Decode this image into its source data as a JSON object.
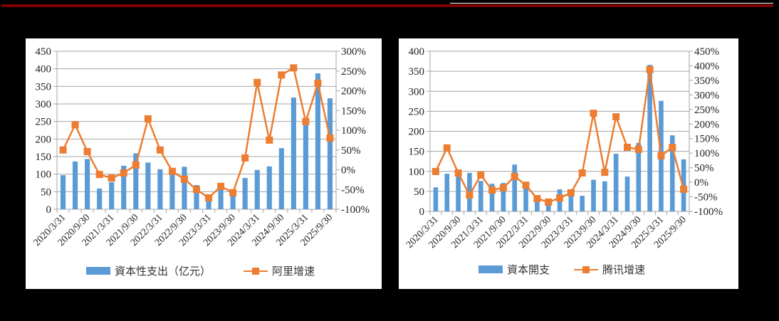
{
  "chart_data": [
    {
      "type": "bar+line",
      "title": "",
      "categories": [
        "2020/3/31",
        "2020/6/30",
        "2020/9/30",
        "2020/12/31",
        "2021/3/31",
        "2021/6/30",
        "2021/9/30",
        "2021/12/31",
        "2022/3/31",
        "2022/6/30",
        "2022/9/30",
        "2022/12/31",
        "2023/3/31",
        "2023/6/30",
        "2023/9/30",
        "2023/12/31",
        "2024/3/31",
        "2024/6/30",
        "2024/9/30",
        "2024/12/31",
        "2025/3/31",
        "2025/6/30",
        "2025/9/30"
      ],
      "visible_tick_labels": [
        "2020/3/31",
        "2020/9/30",
        "2021/3/31",
        "2021/9/30",
        "2022/3/31",
        "2022/9/30",
        "2023/3/31",
        "2023/9/30",
        "2024/3/31",
        "2024/9/30",
        "2025/3/31",
        "2025/9/30"
      ],
      "series": [
        {
          "name": "資本性支出（亿元）",
          "type": "bar",
          "axis": "left",
          "color": "#5b9bd5",
          "values": [
            97,
            136,
            143,
            59,
            77,
            124,
            159,
            133,
            114,
            117,
            121,
            69,
            28,
            57,
            43,
            89,
            112,
            122,
            174,
            318,
            248,
            387,
            316
          ]
        },
        {
          "name": "阿里增速",
          "type": "line",
          "axis": "right",
          "color": "#ed7d31",
          "values": [
            50,
            114,
            46,
            -12,
            -21,
            -8,
            12,
            129,
            50,
            -4,
            -24,
            -50,
            -71,
            -42,
            -58,
            30,
            221,
            75,
            240,
            258,
            122,
            219,
            80
          ]
        }
      ],
      "y_left": {
        "min": 0,
        "max": 450,
        "step": 50,
        "ticks": [
          "0",
          "50",
          "100",
          "150",
          "200",
          "250",
          "300",
          "350",
          "400",
          "450"
        ]
      },
      "y_right": {
        "min": -100,
        "max": 300,
        "step": 50,
        "ticks": [
          "-100%",
          "-50%",
          "0%",
          "50%",
          "100%",
          "150%",
          "200%",
          "250%",
          "300%"
        ]
      },
      "grid": true,
      "legend_position": "bottom"
    },
    {
      "type": "bar+line",
      "title": "",
      "categories": [
        "2020/3/31",
        "2020/6/30",
        "2020/9/30",
        "2020/12/31",
        "2021/3/31",
        "2021/6/30",
        "2021/9/30",
        "2021/12/31",
        "2022/3/31",
        "2022/6/30",
        "2022/9/30",
        "2022/12/31",
        "2023/3/31",
        "2023/6/30",
        "2023/9/30",
        "2023/12/31",
        "2024/3/31",
        "2024/6/30",
        "2024/9/30",
        "2024/12/31",
        "2025/3/31",
        "2025/6/30",
        "2025/9/30"
      ],
      "visible_tick_labels": [
        "2020/3/31",
        "2020/9/30",
        "2021/3/31",
        "2021/9/30",
        "2022/3/31",
        "2022/9/30",
        "2023/3/31",
        "2023/9/30",
        "2024/3/31",
        "2024/9/30",
        "2025/3/31",
        "2025/9/30"
      ],
      "series": [
        {
          "name": "資本開支",
          "type": "bar",
          "axis": "left",
          "color": "#5b9bd5",
          "values": [
            60,
            94,
            96,
            96,
            76,
            69,
            71,
            117,
            60,
            25,
            18,
            55,
            41,
            39,
            79,
            75,
            144,
            87,
            171,
            366,
            276,
            190,
            130
          ]
        },
        {
          "name": "腾讯增速",
          "type": "line",
          "axis": "right",
          "color": "#ed7d31",
          "values": [
            37,
            118,
            32,
            -44,
            25,
            -27,
            -19,
            20,
            -10,
            -56,
            -68,
            -54,
            -36,
            32,
            237,
            34,
            225,
            120,
            113,
            387,
            91,
            120,
            -24
          ]
        }
      ],
      "y_left": {
        "min": 0,
        "max": 400,
        "step": 50,
        "ticks": [
          "0",
          "50",
          "100",
          "150",
          "200",
          "250",
          "300",
          "350",
          "400"
        ]
      },
      "y_right": {
        "min": -100,
        "max": 450,
        "step": 50,
        "ticks": [
          "-100%",
          "-50%",
          "0%",
          "50%",
          "100%",
          "150%",
          "200%",
          "250%",
          "300%",
          "350%",
          "400%",
          "450%"
        ]
      },
      "grid": true,
      "legend_position": "bottom"
    }
  ],
  "colors": {
    "bar": "#5b9bd5",
    "line": "#ed7d31",
    "grid": "#a6a6a6",
    "header_bar": "#7f0000"
  },
  "legends": {
    "left": {
      "bar_label": "資本性支出（亿元）",
      "line_label": "阿里增速"
    },
    "right": {
      "bar_label": "資本開支",
      "line_label": "腾讯增速"
    }
  }
}
